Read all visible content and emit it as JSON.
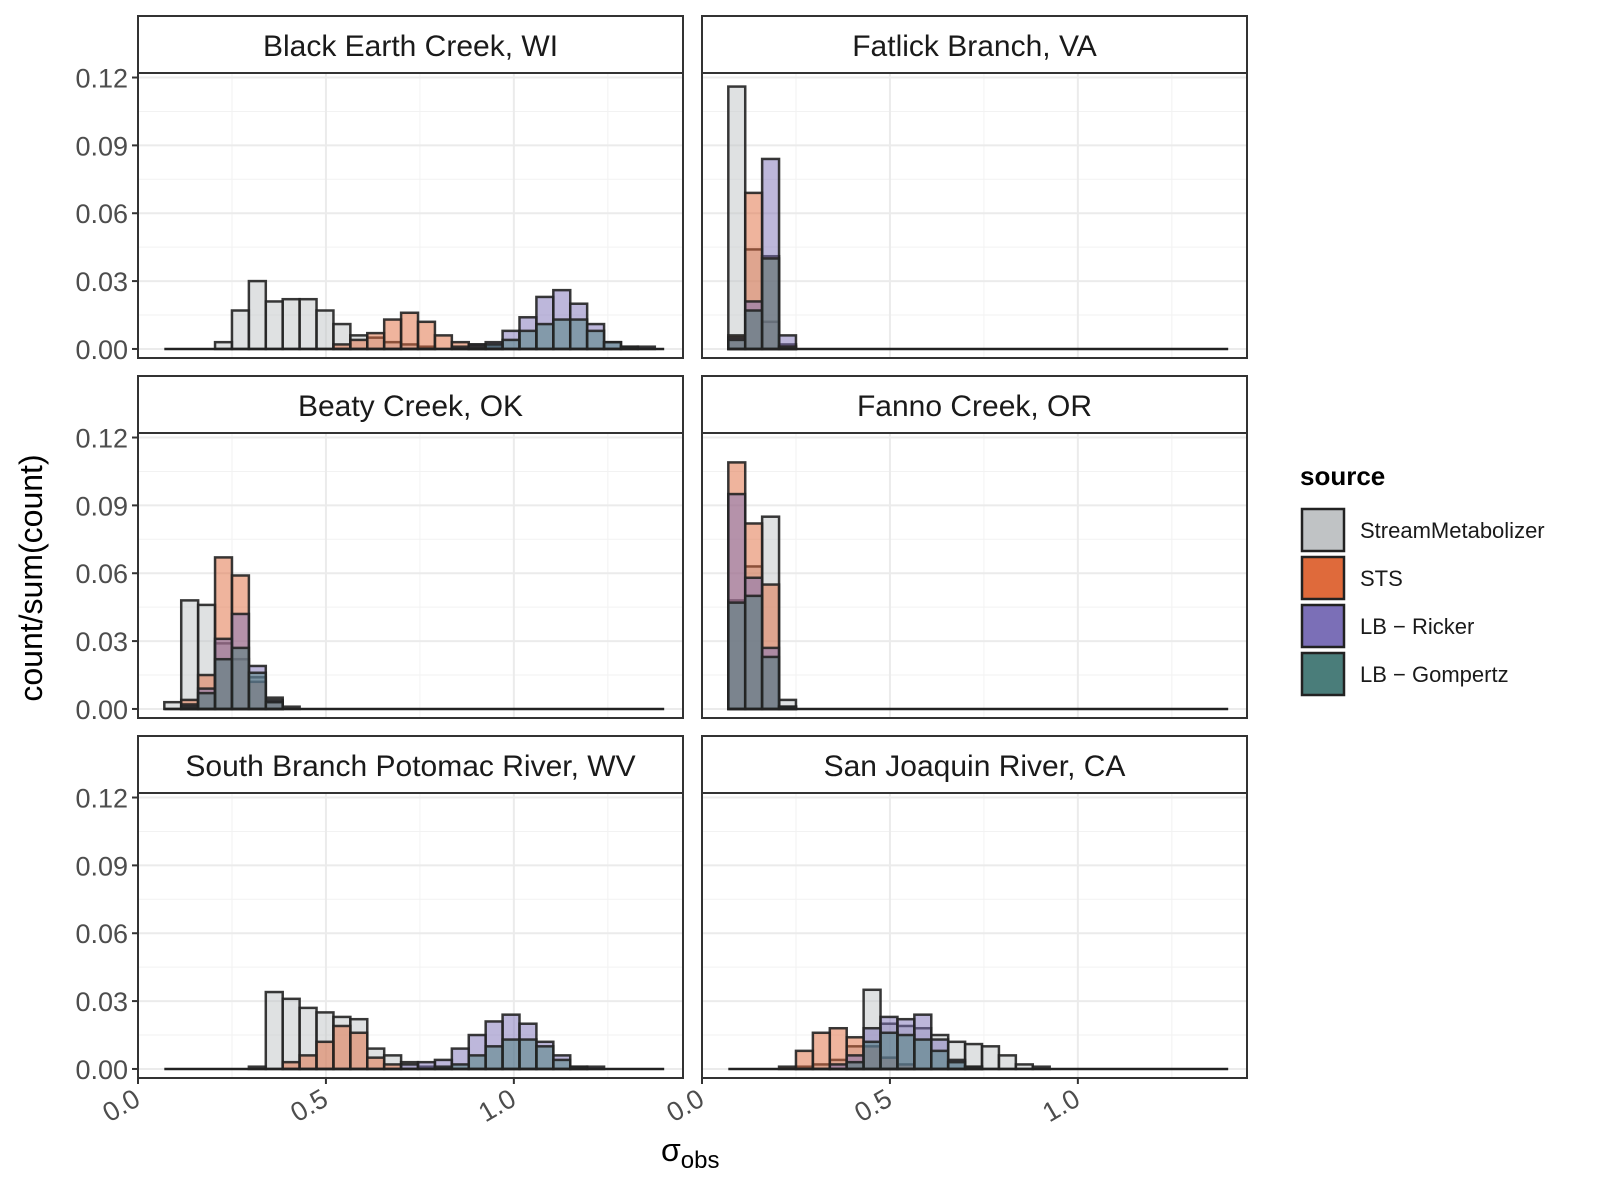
{
  "chart_data": {
    "type": "bar",
    "subtype": "faceted-overlapping-histogram",
    "xlabel": "σ",
    "xlabel_subscript": "obs",
    "ylabel": "count/sum(count)",
    "xlim": [
      0.0,
      1.45
    ],
    "ylim": [
      -0.004,
      0.122
    ],
    "x_ticks": [
      0.0,
      0.5,
      1.0
    ],
    "x_tick_labels": [
      "0.0",
      "0.5",
      "1.0"
    ],
    "y_ticks": [
      0.0,
      0.03,
      0.06,
      0.09,
      0.12
    ],
    "y_tick_labels": [
      "0.00",
      "0.03",
      "0.06",
      "0.09",
      "0.12"
    ],
    "grid": true,
    "legend": {
      "title": "source",
      "position": "right",
      "entries": [
        "StreamMetabolizer",
        "STS",
        "LB − Ricker",
        "LB − Gompertz"
      ],
      "colors": [
        "#c0c3c5",
        "#df6a3b",
        "#7b6fb7",
        "#4a7d7a"
      ]
    },
    "bin_width": 0.045,
    "facets": [
      {
        "title": "Black Earth Creek, WI",
        "series": [
          {
            "source": "StreamMetabolizer",
            "bins": [
              [
                0.07,
                0.0
              ],
              [
                0.115,
                0.0
              ],
              [
                0.16,
                0.0
              ],
              [
                0.205,
                0.003
              ],
              [
                0.25,
                0.017
              ],
              [
                0.295,
                0.03
              ],
              [
                0.34,
                0.021
              ],
              [
                0.385,
                0.022
              ],
              [
                0.43,
                0.022
              ],
              [
                0.475,
                0.017
              ],
              [
                0.52,
                0.011
              ],
              [
                0.565,
                0.006
              ],
              [
                0.61,
                0.005
              ],
              [
                0.655,
                0.003
              ],
              [
                0.7,
                0.002
              ],
              [
                0.745,
                0.001
              ],
              [
                0.79,
                0.0
              ],
              [
                0.835,
                0.0
              ]
            ]
          },
          {
            "source": "STS",
            "bins": [
              [
                0.52,
                0.002
              ],
              [
                0.565,
                0.004
              ],
              [
                0.61,
                0.007
              ],
              [
                0.655,
                0.013
              ],
              [
                0.7,
                0.016
              ],
              [
                0.745,
                0.012
              ],
              [
                0.79,
                0.006
              ],
              [
                0.835,
                0.003
              ],
              [
                0.88,
                0.002
              ],
              [
                0.925,
                0.001
              ]
            ]
          },
          {
            "source": "LB − Ricker",
            "bins": [
              [
                0.835,
                0.001
              ],
              [
                0.88,
                0.002
              ],
              [
                0.925,
                0.003
              ],
              [
                0.97,
                0.008
              ],
              [
                1.015,
                0.014
              ],
              [
                1.06,
                0.023
              ],
              [
                1.105,
                0.026
              ],
              [
                1.15,
                0.02
              ],
              [
                1.195,
                0.011
              ],
              [
                1.24,
                0.003
              ],
              [
                1.285,
                0.001
              ],
              [
                1.33,
                0.001
              ]
            ]
          },
          {
            "source": "LB − Gompertz",
            "bins": [
              [
                0.88,
                0.001
              ],
              [
                0.925,
                0.002
              ],
              [
                0.97,
                0.004
              ],
              [
                1.015,
                0.008
              ],
              [
                1.06,
                0.011
              ],
              [
                1.105,
                0.013
              ],
              [
                1.15,
                0.013
              ],
              [
                1.195,
                0.008
              ],
              [
                1.24,
                0.003
              ],
              [
                1.285,
                0.001
              ]
            ]
          }
        ]
      },
      {
        "title": "Fatlick Branch, VA",
        "series": [
          {
            "source": "StreamMetabolizer",
            "bins": [
              [
                0.07,
                0.116
              ],
              [
                0.115,
                0.044
              ],
              [
                0.16,
                0.012
              ],
              [
                0.205,
                0.001
              ]
            ]
          },
          {
            "source": "STS",
            "bins": [
              [
                0.07,
                0.006
              ],
              [
                0.115,
                0.069
              ],
              [
                0.16,
                0.041
              ],
              [
                0.205,
                0.002
              ]
            ]
          },
          {
            "source": "LB − Ricker",
            "bins": [
              [
                0.07,
                0.005
              ],
              [
                0.115,
                0.021
              ],
              [
                0.16,
                0.084
              ],
              [
                0.205,
                0.006
              ]
            ]
          },
          {
            "source": "LB − Gompertz",
            "bins": [
              [
                0.07,
                0.004
              ],
              [
                0.115,
                0.017
              ],
              [
                0.16,
                0.04
              ],
              [
                0.205,
                0.001
              ]
            ]
          }
        ]
      },
      {
        "title": "Beaty Creek, OK",
        "series": [
          {
            "source": "StreamMetabolizer",
            "bins": [
              [
                0.07,
                0.003
              ],
              [
                0.115,
                0.048
              ],
              [
                0.16,
                0.046
              ],
              [
                0.205,
                0.029
              ],
              [
                0.25,
                0.022
              ],
              [
                0.295,
                0.014
              ],
              [
                0.34,
                0.005
              ],
              [
                0.385,
                0.001
              ]
            ]
          },
          {
            "source": "STS",
            "bins": [
              [
                0.115,
                0.004
              ],
              [
                0.16,
                0.015
              ],
              [
                0.205,
                0.067
              ],
              [
                0.25,
                0.059
              ],
              [
                0.295,
                0.012
              ],
              [
                0.34,
                0.003
              ]
            ]
          },
          {
            "source": "LB − Ricker",
            "bins": [
              [
                0.115,
                0.002
              ],
              [
                0.16,
                0.009
              ],
              [
                0.205,
                0.031
              ],
              [
                0.25,
                0.042
              ],
              [
                0.295,
                0.019
              ],
              [
                0.34,
                0.004
              ]
            ]
          },
          {
            "source": "LB − Gompertz",
            "bins": [
              [
                0.115,
                0.001
              ],
              [
                0.16,
                0.007
              ],
              [
                0.205,
                0.022
              ],
              [
                0.25,
                0.027
              ],
              [
                0.295,
                0.016
              ],
              [
                0.34,
                0.003
              ]
            ]
          }
        ]
      },
      {
        "title": "Fanno Creek, OR",
        "series": [
          {
            "source": "StreamMetabolizer",
            "bins": [
              [
                0.07,
                0.048
              ],
              [
                0.115,
                0.063
              ],
              [
                0.16,
                0.085
              ],
              [
                0.205,
                0.004
              ]
            ]
          },
          {
            "source": "STS",
            "bins": [
              [
                0.07,
                0.109
              ],
              [
                0.115,
                0.082
              ],
              [
                0.16,
                0.055
              ],
              [
                0.205,
                0.001
              ]
            ]
          },
          {
            "source": "LB − Ricker",
            "bins": [
              [
                0.07,
                0.095
              ],
              [
                0.115,
                0.058
              ],
              [
                0.16,
                0.027
              ],
              [
                0.205,
                0.001
              ]
            ]
          },
          {
            "source": "LB − Gompertz",
            "bins": [
              [
                0.07,
                0.047
              ],
              [
                0.115,
                0.05
              ],
              [
                0.16,
                0.023
              ],
              [
                0.205,
                0.001
              ]
            ]
          }
        ]
      },
      {
        "title": "South Branch Potomac River, WV",
        "series": [
          {
            "source": "StreamMetabolizer",
            "bins": [
              [
                0.295,
                0.001
              ],
              [
                0.34,
                0.034
              ],
              [
                0.385,
                0.031
              ],
              [
                0.43,
                0.027
              ],
              [
                0.475,
                0.025
              ],
              [
                0.52,
                0.023
              ],
              [
                0.565,
                0.022
              ],
              [
                0.61,
                0.009
              ],
              [
                0.655,
                0.006
              ],
              [
                0.7,
                0.003
              ],
              [
                0.745,
                0.001
              ]
            ]
          },
          {
            "source": "STS",
            "bins": [
              [
                0.385,
                0.003
              ],
              [
                0.43,
                0.006
              ],
              [
                0.475,
                0.012
              ],
              [
                0.52,
                0.019
              ],
              [
                0.565,
                0.016
              ],
              [
                0.61,
                0.005
              ],
              [
                0.655,
                0.002
              ]
            ]
          },
          {
            "source": "LB − Ricker",
            "bins": [
              [
                0.7,
                0.002
              ],
              [
                0.745,
                0.003
              ],
              [
                0.79,
                0.004
              ],
              [
                0.835,
                0.009
              ],
              [
                0.88,
                0.015
              ],
              [
                0.925,
                0.021
              ],
              [
                0.97,
                0.024
              ],
              [
                1.015,
                0.02
              ],
              [
                1.06,
                0.012
              ],
              [
                1.105,
                0.006
              ],
              [
                1.15,
                0.001
              ],
              [
                1.195,
                0.001
              ]
            ]
          },
          {
            "source": "LB − Gompertz",
            "bins": [
              [
                0.79,
                0.001
              ],
              [
                0.835,
                0.002
              ],
              [
                0.88,
                0.006
              ],
              [
                0.925,
                0.01
              ],
              [
                0.97,
                0.013
              ],
              [
                1.015,
                0.013
              ],
              [
                1.06,
                0.01
              ],
              [
                1.105,
                0.004
              ],
              [
                1.15,
                0.001
              ]
            ]
          }
        ]
      },
      {
        "title": "San Joaquin River, CA",
        "series": [
          {
            "source": "StreamMetabolizer",
            "bins": [
              [
                0.205,
                0.0
              ],
              [
                0.25,
                0.001
              ],
              [
                0.295,
                0.002
              ],
              [
                0.34,
                0.004
              ],
              [
                0.385,
                0.01
              ],
              [
                0.43,
                0.035
              ],
              [
                0.475,
                0.02
              ],
              [
                0.52,
                0.019
              ],
              [
                0.565,
                0.018
              ],
              [
                0.61,
                0.015
              ],
              [
                0.655,
                0.012
              ],
              [
                0.7,
                0.011
              ],
              [
                0.745,
                0.01
              ],
              [
                0.79,
                0.006
              ],
              [
                0.835,
                0.002
              ],
              [
                0.88,
                0.001
              ]
            ]
          },
          {
            "source": "STS",
            "bins": [
              [
                0.205,
                0.001
              ],
              [
                0.25,
                0.008
              ],
              [
                0.295,
                0.016
              ],
              [
                0.34,
                0.018
              ],
              [
                0.385,
                0.014
              ],
              [
                0.43,
                0.01
              ],
              [
                0.475,
                0.005
              ],
              [
                0.52,
                0.002
              ]
            ]
          },
          {
            "source": "LB − Ricker",
            "bins": [
              [
                0.34,
                0.002
              ],
              [
                0.385,
                0.006
              ],
              [
                0.43,
                0.018
              ],
              [
                0.475,
                0.023
              ],
              [
                0.52,
                0.022
              ],
              [
                0.565,
                0.024
              ],
              [
                0.61,
                0.013
              ],
              [
                0.655,
                0.004
              ],
              [
                0.7,
                0.001
              ]
            ]
          },
          {
            "source": "LB − Gompertz",
            "bins": [
              [
                0.385,
                0.003
              ],
              [
                0.43,
                0.012
              ],
              [
                0.475,
                0.016
              ],
              [
                0.52,
                0.015
              ],
              [
                0.565,
                0.013
              ],
              [
                0.61,
                0.008
              ],
              [
                0.655,
                0.003
              ],
              [
                0.7,
                0.001
              ]
            ]
          }
        ]
      }
    ]
  }
}
